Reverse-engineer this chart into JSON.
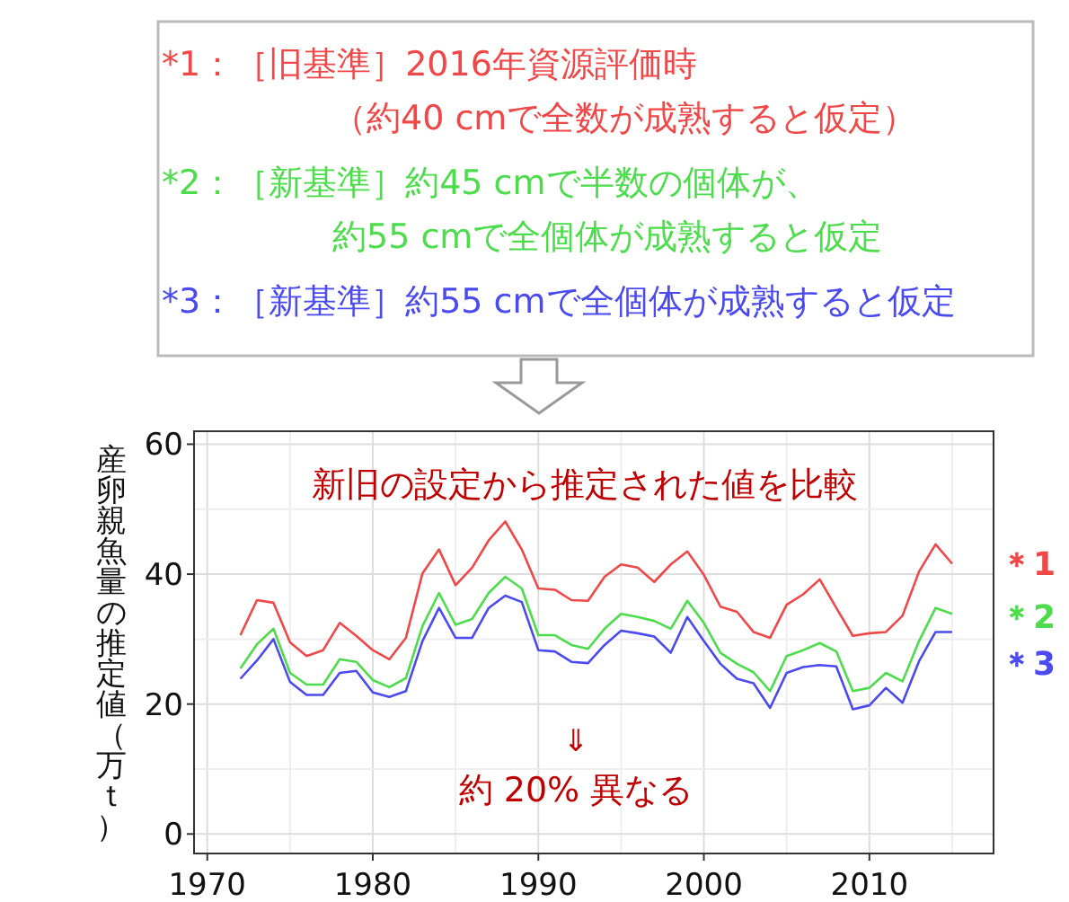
{
  "chart_data": {
    "type": "line",
    "ylabel": "産卵親魚量の推定値（万ｔ）",
    "annotations": [
      "*1：［旧基準］2016年資源評価時",
      "（約40 cmで全数が成熟すると仮定）",
      "*2：［新基準］約45 cmで半数の個体が、",
      "約55 cmで全個体が成熟すると仮定",
      "*3：［新基準］約55 cmで全個体が成熟すると仮定",
      "新旧の設定から推定された値を比較",
      "⇓",
      "約 20% 異なる"
    ],
    "x": [
      1972,
      1973,
      1974,
      1975,
      1976,
      1977,
      1978,
      1979,
      1980,
      1981,
      1982,
      1983,
      1984,
      1985,
      1986,
      1987,
      1988,
      1989,
      1990,
      1991,
      1992,
      1993,
      1994,
      1995,
      1996,
      1997,
      1998,
      1999,
      2000,
      2001,
      2002,
      2003,
      2004,
      2005,
      2006,
      2007,
      2008,
      2009,
      2010,
      2011,
      2012,
      2013,
      2014,
      2015
    ],
    "series": [
      {
        "name": "＊1",
        "color": "#f04848",
        "values": [
          30.6,
          36.0,
          35.6,
          29.5,
          27.4,
          28.3,
          32.5,
          30.5,
          28.3,
          26.9,
          30.2,
          40.1,
          43.8,
          38.3,
          41.0,
          45.2,
          48.1,
          43.8,
          37.8,
          37.6,
          36.0,
          35.9,
          39.6,
          41.5,
          41.0,
          38.8,
          41.5,
          43.5,
          39.9,
          35.0,
          34.2,
          31.1,
          30.2,
          35.3,
          36.9,
          39.2,
          34.8,
          30.5,
          30.9,
          31.1,
          33.6,
          40.4,
          44.6,
          41.6
        ]
      },
      {
        "name": "＊2",
        "color": "#4cdc4c",
        "values": [
          25.5,
          29.2,
          31.6,
          24.8,
          23.0,
          23.0,
          26.9,
          26.5,
          23.7,
          22.6,
          24.0,
          32.0,
          37.1,
          32.2,
          33.1,
          37.1,
          39.6,
          37.8,
          30.6,
          30.6,
          29.1,
          28.5,
          31.6,
          33.9,
          33.4,
          32.8,
          31.6,
          35.9,
          32.5,
          27.9,
          26.2,
          24.9,
          22.0,
          27.4,
          28.3,
          29.4,
          28.1,
          22.0,
          22.5,
          24.8,
          23.5,
          29.7,
          34.8,
          33.9
        ]
      },
      {
        "name": "＊3",
        "color": "#4a4af0",
        "values": [
          23.9,
          26.7,
          30.0,
          23.4,
          21.4,
          21.4,
          24.8,
          25.1,
          21.8,
          21.1,
          22.0,
          29.7,
          34.8,
          30.2,
          30.2,
          34.8,
          36.7,
          35.7,
          28.3,
          28.1,
          26.5,
          26.3,
          29.1,
          31.3,
          30.9,
          30.4,
          27.9,
          33.4,
          29.7,
          26.2,
          23.9,
          23.2,
          19.4,
          24.8,
          25.7,
          26.0,
          25.8,
          19.2,
          19.8,
          22.5,
          20.2,
          26.6,
          31.1,
          31.1
        ]
      }
    ],
    "xlim": [
      1969.2,
      2017.5
    ],
    "ylim": [
      -3,
      62
    ],
    "xticks": [
      1970,
      {
        "value": 1975,
        "label": null
      },
      1980,
      {
        "value": 1985,
        "label": null
      },
      1990,
      {
        "value": 1995,
        "label": null
      },
      2000,
      {
        "value": 2005,
        "label": null
      },
      2010,
      {
        "value": 2015,
        "label": null
      }
    ],
    "yticks": [
      0,
      {
        "value": 10,
        "label": null
      },
      20,
      {
        "value": 30,
        "label": null
      },
      40,
      {
        "value": 50,
        "label": null
      },
      60
    ],
    "grid": true,
    "line_style": "solid",
    "marker": "none"
  }
}
